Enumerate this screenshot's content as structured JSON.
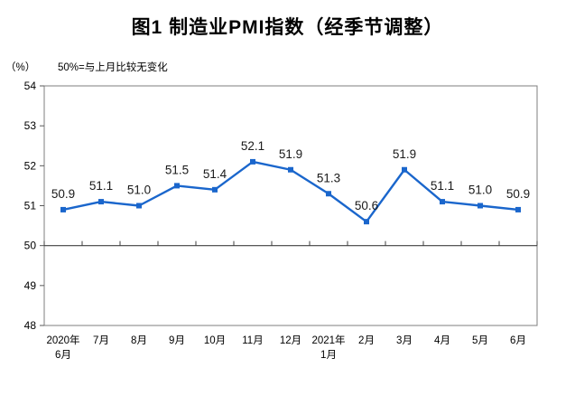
{
  "page": {
    "title": "图1 制造业PMI指数（经季节调整）",
    "unit_label": "（%）",
    "baseline_note": "50%=与上月比较无变化"
  },
  "colors": {
    "line": "#1A66CC",
    "frame": "#7F7F7F",
    "axis_line": "#404040",
    "tick": "#595959",
    "tick_label": "#000000",
    "data_label": "#1A1A1A"
  },
  "chart_data": {
    "type": "line",
    "title": "图1 制造业PMI指数（经季节调整）",
    "subtitle": "50%=与上月比较无变化",
    "ylabel": "（%）",
    "xlabel": "",
    "categories": [
      "2020年\n6月",
      "7月",
      "8月",
      "9月",
      "10月",
      "11月",
      "12月",
      "2021年\n1月",
      "2月",
      "3月",
      "4月",
      "5月",
      "6月"
    ],
    "values": [
      50.9,
      51.1,
      51.0,
      51.5,
      51.4,
      52.1,
      51.9,
      51.3,
      50.6,
      51.9,
      51.1,
      51.0,
      50.9
    ],
    "data_labels": [
      "50.9",
      "51.1",
      "51.0",
      "51.5",
      "51.4",
      "52.1",
      "51.9",
      "51.3",
      "50.6",
      "51.9",
      "51.1",
      "51.0",
      "50.9"
    ],
    "ylim": [
      48,
      54
    ],
    "yticks": [
      54,
      53,
      52,
      51,
      50,
      49,
      48
    ],
    "baseline": 50,
    "grid": false,
    "legend": false,
    "marker": "square"
  }
}
